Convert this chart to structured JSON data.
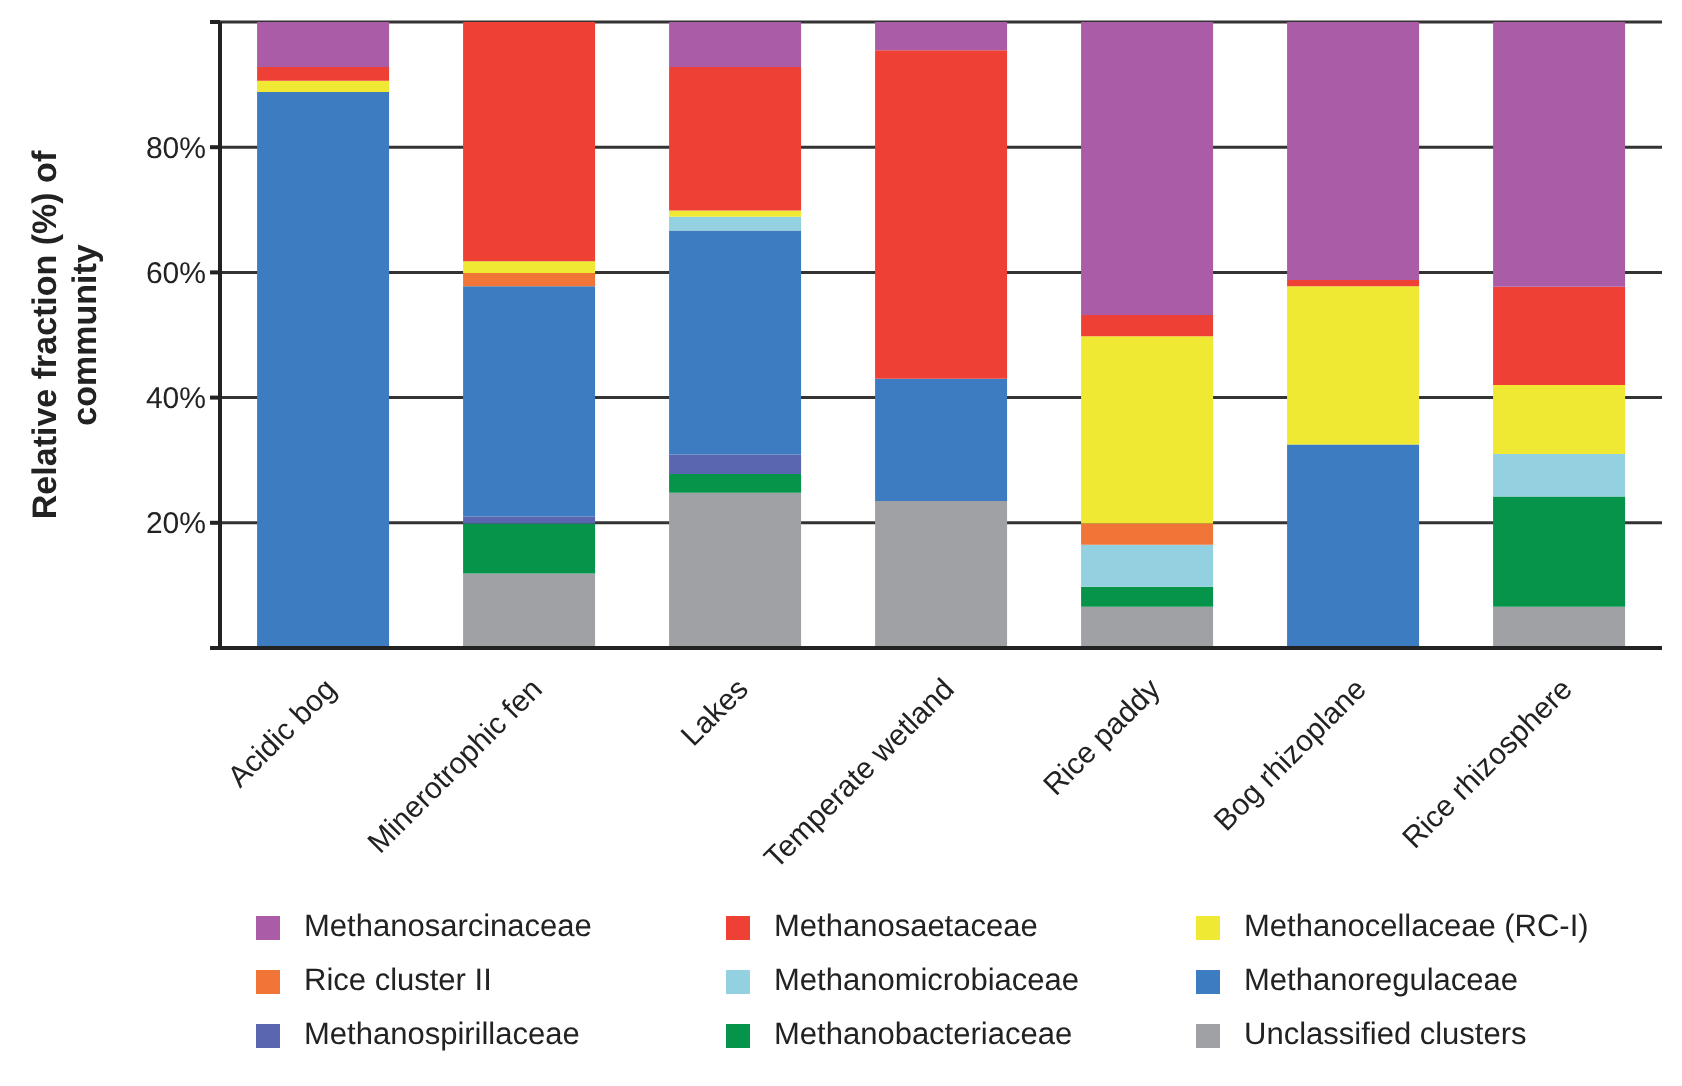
{
  "chart_data": {
    "type": "bar",
    "stacked": true,
    "ylabel": "Relative fraction (%) of community",
    "categories": [
      "Acidic bog",
      "Minerotrophic fen",
      "Lakes",
      "Temperate wetland",
      "Rice paddy",
      "Bog rhizoplane",
      "Rice rhizosphere"
    ],
    "series": [
      {
        "name": "Unclassified clusters",
        "color": "#a0a1a5",
        "values": [
          0,
          11.9,
          24.8,
          23.5,
          6.6,
          0,
          6.6
        ]
      },
      {
        "name": "Methanobacteriaceae",
        "color": "#05944a",
        "values": [
          0,
          8.0,
          3.0,
          0,
          3.2,
          0,
          17.6
        ]
      },
      {
        "name": "Methanospirillaceae",
        "color": "#5b66b0",
        "values": [
          0,
          1.1,
          3.1,
          0,
          0,
          0,
          0
        ]
      },
      {
        "name": "Methanoregulaceae",
        "color": "#3d7cc0",
        "values": [
          88.8,
          36.8,
          35.8,
          19.5,
          0,
          32.5,
          0
        ]
      },
      {
        "name": "Methanomicrobiaceae",
        "color": "#93d0e0",
        "values": [
          0,
          0,
          2.2,
          0,
          6.7,
          0,
          6.8
        ]
      },
      {
        "name": "Rice cluster II",
        "color": "#f07536",
        "values": [
          0,
          2.1,
          0,
          0,
          3.4,
          0,
          0
        ]
      },
      {
        "name": "Methanocellaceae (RC-I)",
        "color": "#efe934",
        "values": [
          1.8,
          1.9,
          1.0,
          0,
          29.9,
          25.3,
          11.0
        ]
      },
      {
        "name": "Methanosaetaceae",
        "color": "#ee4035",
        "values": [
          2.2,
          38.2,
          22.9,
          52.5,
          3.4,
          1.0,
          15.7
        ]
      },
      {
        "name": "Methanosarcinaceae",
        "color": "#ab5ca6",
        "values": [
          7.2,
          0,
          7.2,
          4.5,
          46.8,
          41.2,
          42.3
        ]
      }
    ],
    "ylim": [
      0,
      100
    ],
    "yticks": [
      {
        "value": 0,
        "label": null
      },
      {
        "value": 20,
        "label": "20%"
      },
      {
        "value": 40,
        "label": "40%"
      },
      {
        "value": 60,
        "label": "60%"
      },
      {
        "value": 80,
        "label": "80%"
      },
      {
        "value": 100,
        "label": null
      }
    ],
    "grid": "y",
    "legend": "bottom"
  }
}
